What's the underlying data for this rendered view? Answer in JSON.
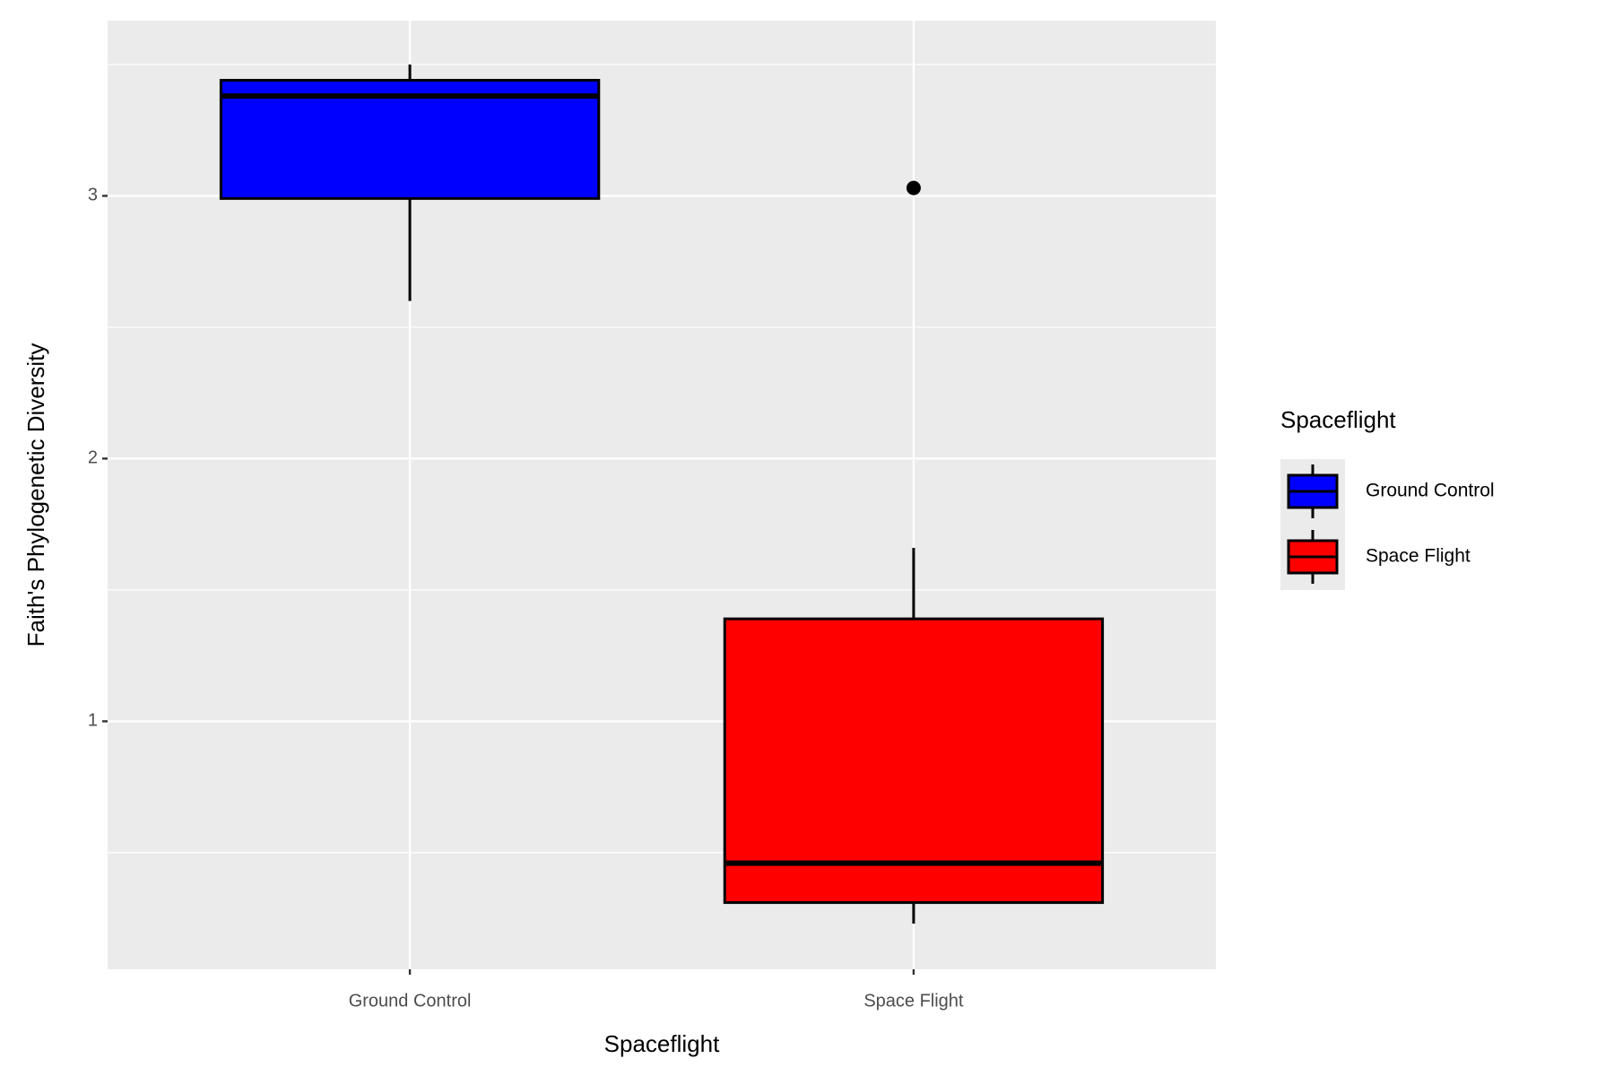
{
  "chart_data": {
    "type": "box",
    "xlabel": "Spaceflight",
    "ylabel": "Faith's Phylogenetic Diversity",
    "legend_title": "Spaceflight",
    "legend_position": "right",
    "categories": [
      "Ground Control",
      "Space Flight"
    ],
    "series": [
      {
        "name": "Ground Control",
        "color": "#0000ff",
        "whislo": 2.6,
        "q1": 2.99,
        "med": 3.38,
        "q3": 3.44,
        "whishi": 3.5,
        "outliers": []
      },
      {
        "name": "Space Flight",
        "color": "#ff0000",
        "whislo": 0.23,
        "q1": 0.31,
        "med": 0.46,
        "q3": 1.39,
        "whishi": 1.66,
        "outliers": [
          3.03
        ]
      }
    ],
    "ylim": [
      0.056,
      3.667
    ],
    "yticks": [
      1,
      2,
      3
    ],
    "y_minor_grid": [
      0.5,
      1.5,
      2.5,
      3.5
    ],
    "grid": true
  }
}
